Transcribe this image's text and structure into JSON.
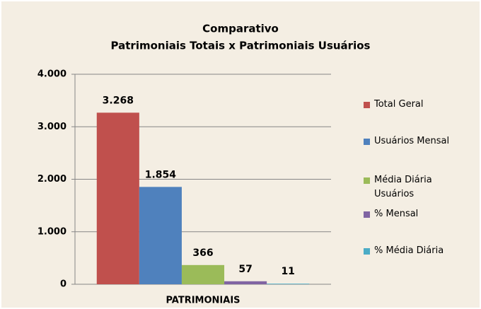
{
  "chart_data": {
    "type": "bar",
    "title": [
      "Comparativo",
      "Patrimoniais Totais x Patrimoniais Usuários"
    ],
    "categories": [
      "PATRIMONIAIS"
    ],
    "series": [
      {
        "name": "Total Geral",
        "color": "#c0504d",
        "values": [
          3268
        ],
        "value_labels": [
          "3.268"
        ]
      },
      {
        "name": "Usuários Mensal",
        "color": "#4f81bd",
        "values": [
          1854
        ],
        "value_labels": [
          "1.854"
        ]
      },
      {
        "name": "Média Diária Usuários",
        "color": "#9bbb59",
        "values": [
          366
        ]
      },
      {
        "name": "% Mensal",
        "color": "#8064a2",
        "values": [
          57
        ]
      },
      {
        "name": "% Média Diária",
        "color": "#4bacc6",
        "values": [
          11
        ]
      }
    ],
    "ylim": [
      0,
      4000
    ],
    "yticks": [
      0,
      {
        "value": 1000,
        "label": "1.000"
      },
      {
        "value": 2000,
        "label": "2.000"
      },
      {
        "value": 3000,
        "label": "3.000"
      },
      {
        "value": 4000,
        "label": "4.000"
      }
    ],
    "grid": true,
    "legend": "right"
  }
}
